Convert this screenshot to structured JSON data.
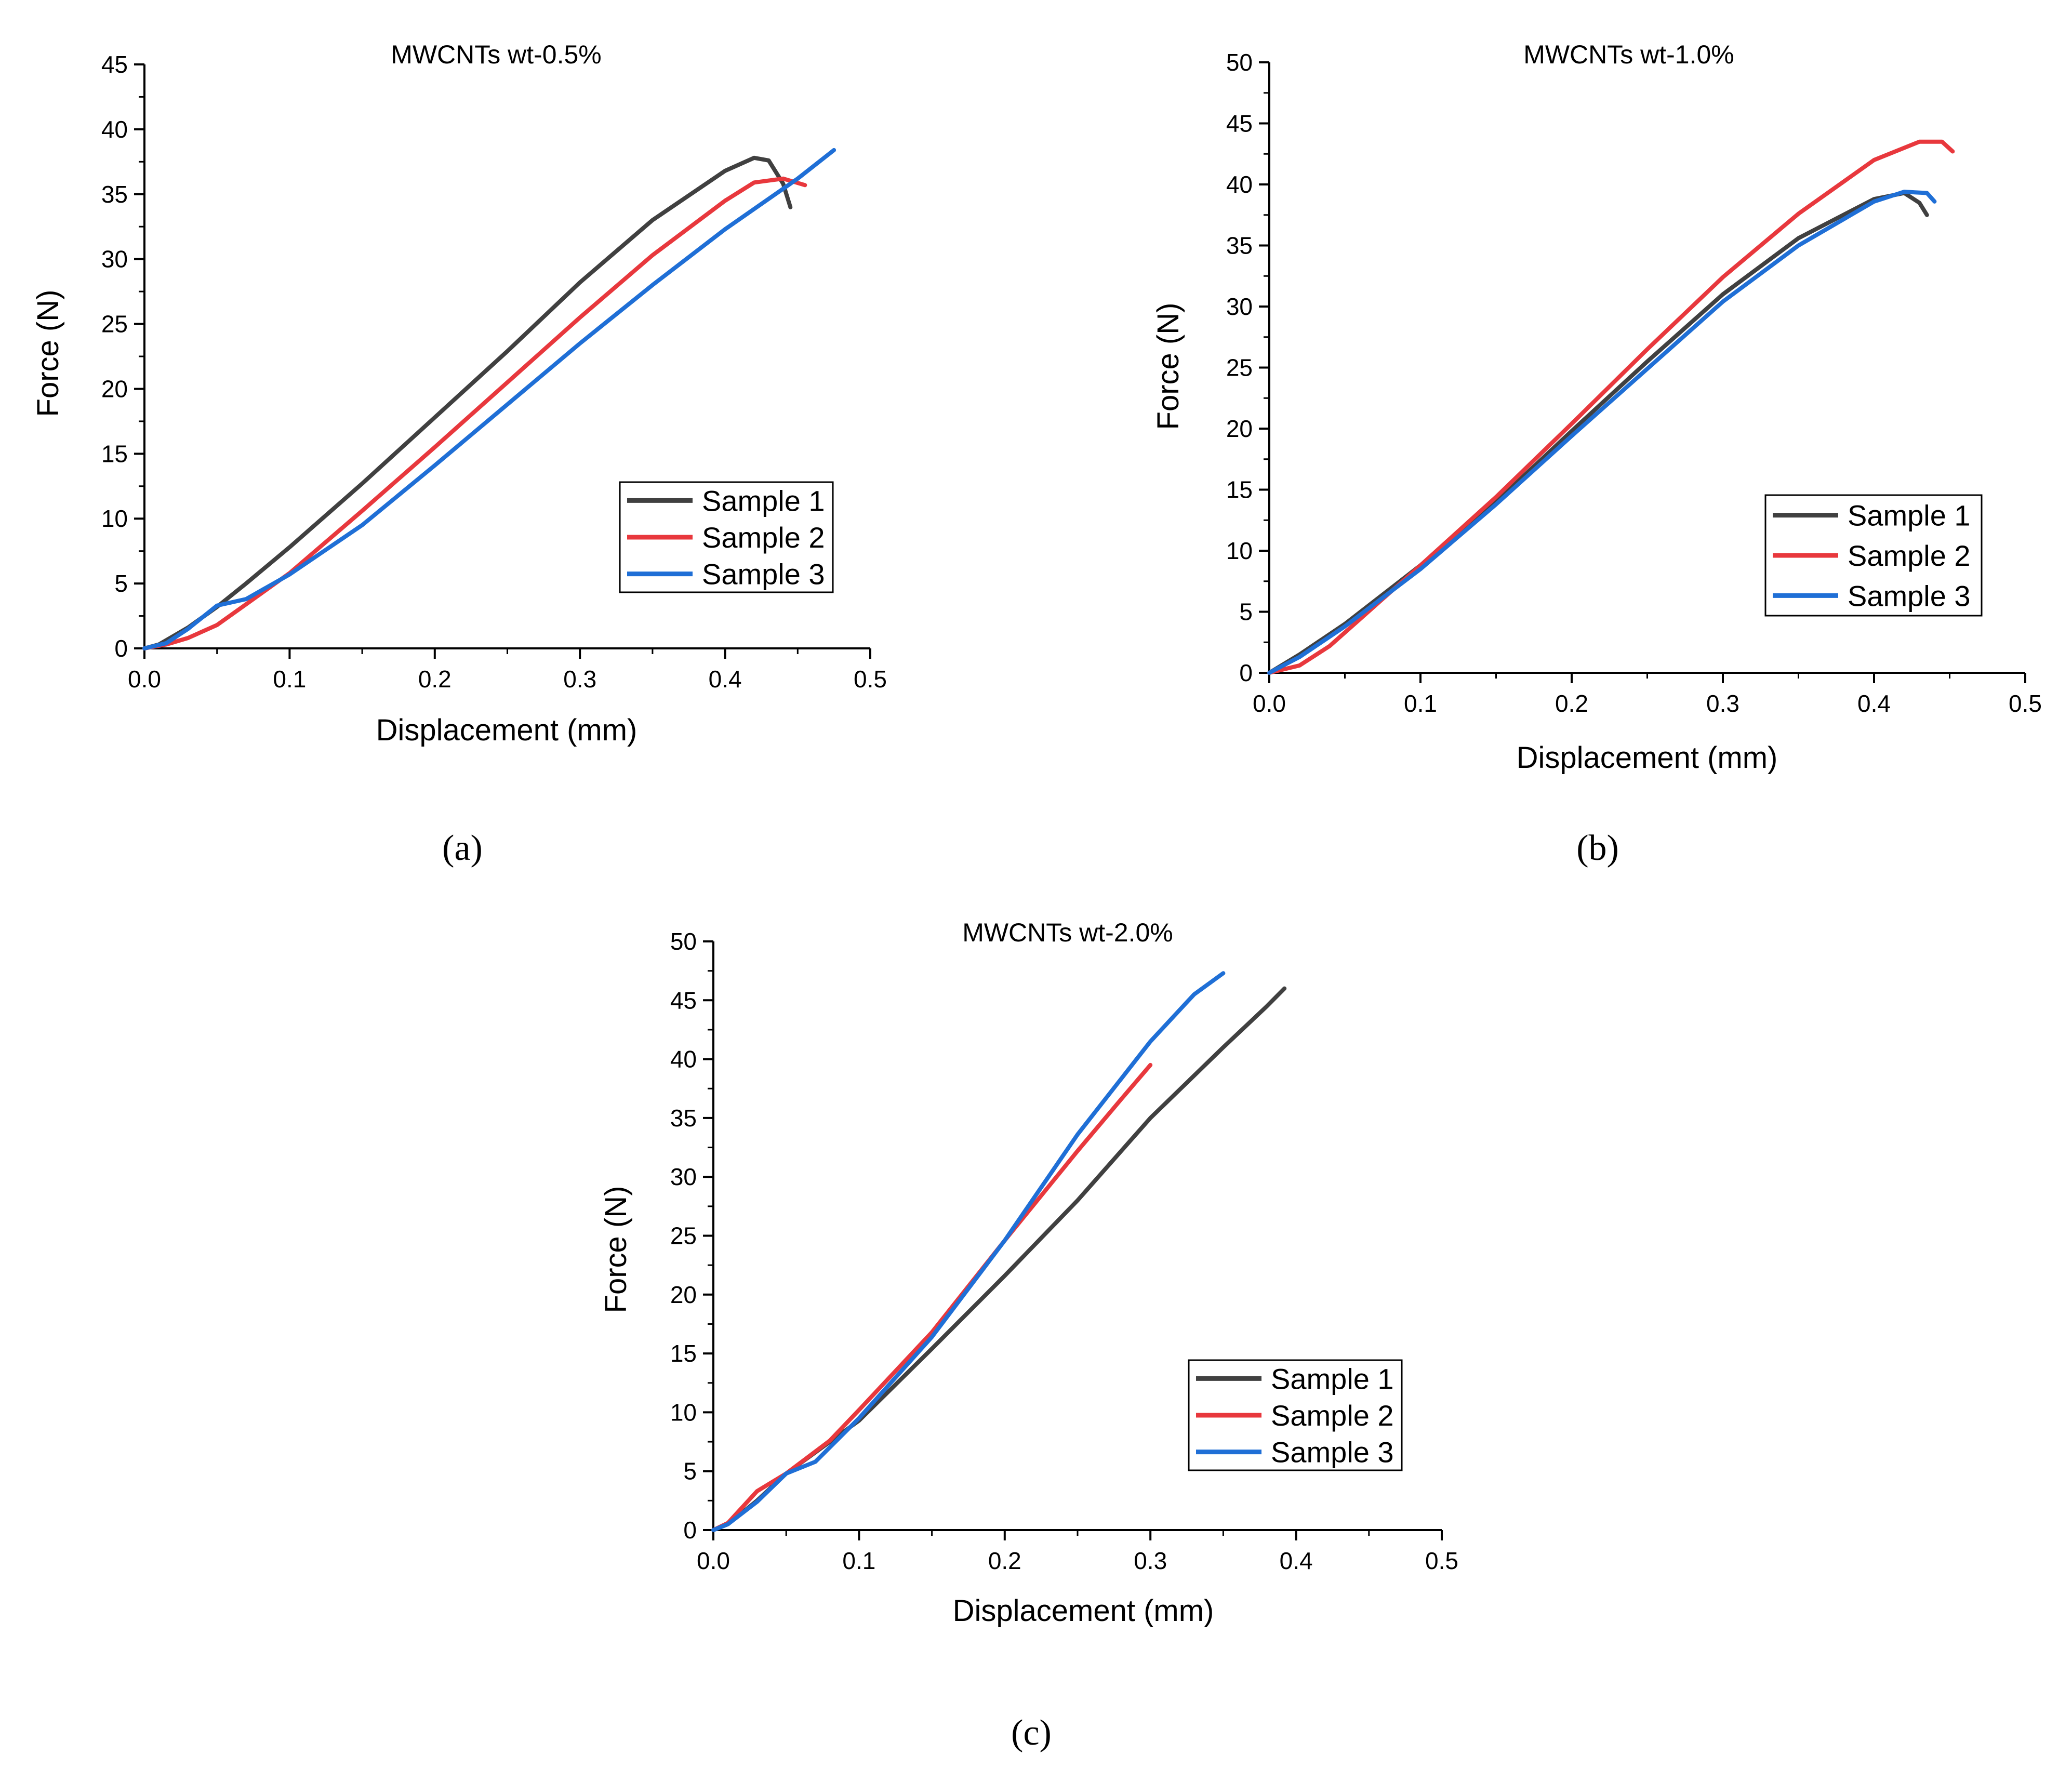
{
  "chart_data": [
    {
      "type": "line",
      "panel_label": "(a)",
      "title": "MWCNTs wt-0.5%",
      "xlabel": "Displacement (mm)",
      "ylabel": "Force (N)",
      "xlim": [
        0,
        0.5
      ],
      "ylim": [
        0,
        45
      ],
      "xticks": [
        "0.0",
        "0.1",
        "0.2",
        "0.3",
        "0.4",
        "0.5"
      ],
      "yticks": [
        "0",
        "5",
        "10",
        "15",
        "20",
        "25",
        "30",
        "35",
        "40",
        "45"
      ],
      "legend_position": "bottom-right",
      "series": [
        {
          "name": "Sample 1",
          "color": "#404040",
          "points": [
            [
              0,
              0
            ],
            [
              0.01,
              0.3
            ],
            [
              0.03,
              1.6
            ],
            [
              0.05,
              3.2
            ],
            [
              0.07,
              5.0
            ],
            [
              0.1,
              7.8
            ],
            [
              0.15,
              12.7
            ],
            [
              0.2,
              17.8
            ],
            [
              0.25,
              22.9
            ],
            [
              0.3,
              28.2
            ],
            [
              0.35,
              33.0
            ],
            [
              0.4,
              36.8
            ],
            [
              0.42,
              37.8
            ],
            [
              0.43,
              37.6
            ],
            [
              0.44,
              35.8
            ],
            [
              0.445,
              34.0
            ]
          ]
        },
        {
          "name": "Sample 2",
          "color": "#e8383d",
          "points": [
            [
              0,
              0
            ],
            [
              0.015,
              0.3
            ],
            [
              0.03,
              0.8
            ],
            [
              0.05,
              1.8
            ],
            [
              0.07,
              3.4
            ],
            [
              0.1,
              5.8
            ],
            [
              0.15,
              10.6
            ],
            [
              0.2,
              15.5
            ],
            [
              0.25,
              20.5
            ],
            [
              0.3,
              25.5
            ],
            [
              0.35,
              30.3
            ],
            [
              0.4,
              34.5
            ],
            [
              0.42,
              35.9
            ],
            [
              0.44,
              36.2
            ],
            [
              0.455,
              35.7
            ]
          ]
        },
        {
          "name": "Sample 3",
          "color": "#1f6fd6",
          "points": [
            [
              0,
              0
            ],
            [
              0.015,
              0.4
            ],
            [
              0.03,
              1.5
            ],
            [
              0.05,
              3.3
            ],
            [
              0.07,
              3.8
            ],
            [
              0.1,
              5.7
            ],
            [
              0.15,
              9.5
            ],
            [
              0.2,
              14.1
            ],
            [
              0.25,
              18.8
            ],
            [
              0.3,
              23.5
            ],
            [
              0.35,
              28.0
            ],
            [
              0.4,
              32.3
            ],
            [
              0.45,
              36.2
            ],
            [
              0.475,
              38.4
            ]
          ]
        }
      ]
    },
    {
      "type": "line",
      "panel_label": "(b)",
      "title": "MWCNTs wt-1.0%",
      "xlabel": "Displacement (mm)",
      "ylabel": "Force (N)",
      "xlim": [
        0,
        0.5
      ],
      "ylim": [
        0,
        50
      ],
      "xticks": [
        "0.0",
        "0.1",
        "0.2",
        "0.3",
        "0.4",
        "0.5"
      ],
      "yticks": [
        "0",
        "5",
        "10",
        "15",
        "20",
        "25",
        "30",
        "35",
        "40",
        "45",
        "50"
      ],
      "legend_position": "bottom-right",
      "series": [
        {
          "name": "Sample 1",
          "color": "#404040",
          "points": [
            [
              0,
              0
            ],
            [
              0.02,
              1.5
            ],
            [
              0.05,
              4.0
            ],
            [
              0.1,
              8.8
            ],
            [
              0.15,
              14.0
            ],
            [
              0.2,
              19.8
            ],
            [
              0.25,
              25.5
            ],
            [
              0.3,
              31.0
            ],
            [
              0.35,
              35.6
            ],
            [
              0.4,
              38.8
            ],
            [
              0.42,
              39.3
            ],
            [
              0.43,
              38.5
            ],
            [
              0.435,
              37.5
            ]
          ]
        },
        {
          "name": "Sample 2",
          "color": "#e8383d",
          "points": [
            [
              0,
              0
            ],
            [
              0.02,
              0.6
            ],
            [
              0.04,
              2.2
            ],
            [
              0.06,
              4.4
            ],
            [
              0.1,
              8.8
            ],
            [
              0.15,
              14.4
            ],
            [
              0.2,
              20.4
            ],
            [
              0.25,
              26.5
            ],
            [
              0.3,
              32.4
            ],
            [
              0.35,
              37.6
            ],
            [
              0.4,
              42.0
            ],
            [
              0.43,
              43.5
            ],
            [
              0.445,
              43.5
            ],
            [
              0.452,
              42.7
            ]
          ]
        },
        {
          "name": "Sample 3",
          "color": "#1f6fd6",
          "points": [
            [
              0,
              0
            ],
            [
              0.02,
              1.3
            ],
            [
              0.05,
              3.8
            ],
            [
              0.1,
              8.5
            ],
            [
              0.15,
              13.8
            ],
            [
              0.2,
              19.4
            ],
            [
              0.25,
              24.9
            ],
            [
              0.3,
              30.4
            ],
            [
              0.35,
              35.0
            ],
            [
              0.4,
              38.6
            ],
            [
              0.42,
              39.4
            ],
            [
              0.435,
              39.3
            ],
            [
              0.44,
              38.6
            ]
          ]
        }
      ]
    },
    {
      "type": "line",
      "panel_label": "(c)",
      "title": "MWCNTs wt-2.0%",
      "xlabel": "Displacement (mm)",
      "ylabel": "Force (N)",
      "xlim": [
        0,
        0.5
      ],
      "ylim": [
        0,
        50
      ],
      "xticks": [
        "0.0",
        "0.1",
        "0.2",
        "0.3",
        "0.4",
        "0.5"
      ],
      "yticks": [
        "0",
        "5",
        "10",
        "15",
        "20",
        "25",
        "30",
        "35",
        "40",
        "45",
        "50"
      ],
      "legend_position": "bottom-right",
      "series": [
        {
          "name": "Sample 1",
          "color": "#404040",
          "points": [
            [
              0,
              0
            ],
            [
              0.01,
              0.5
            ],
            [
              0.03,
              2.5
            ],
            [
              0.05,
              4.8
            ],
            [
              0.1,
              9.3
            ],
            [
              0.15,
              15.4
            ],
            [
              0.2,
              21.6
            ],
            [
              0.25,
              28.0
            ],
            [
              0.3,
              35.0
            ],
            [
              0.35,
              41.0
            ],
            [
              0.38,
              44.5
            ],
            [
              0.392,
              46.0
            ]
          ]
        },
        {
          "name": "Sample 2",
          "color": "#e8383d",
          "points": [
            [
              0,
              0
            ],
            [
              0.01,
              0.6
            ],
            [
              0.03,
              3.3
            ],
            [
              0.05,
              4.8
            ],
            [
              0.08,
              7.6
            ],
            [
              0.1,
              10.2
            ],
            [
              0.15,
              16.8
            ],
            [
              0.2,
              24.6
            ],
            [
              0.25,
              32.2
            ],
            [
              0.28,
              36.6
            ],
            [
              0.3,
              39.5
            ]
          ]
        },
        {
          "name": "Sample 3",
          "color": "#1f6fd6",
          "points": [
            [
              0,
              0
            ],
            [
              0.01,
              0.5
            ],
            [
              0.03,
              2.4
            ],
            [
              0.05,
              4.8
            ],
            [
              0.07,
              5.8
            ],
            [
              0.1,
              9.5
            ],
            [
              0.15,
              16.4
            ],
            [
              0.2,
              24.6
            ],
            [
              0.25,
              33.6
            ],
            [
              0.3,
              41.5
            ],
            [
              0.33,
              45.5
            ],
            [
              0.35,
              47.3
            ]
          ]
        }
      ]
    }
  ]
}
